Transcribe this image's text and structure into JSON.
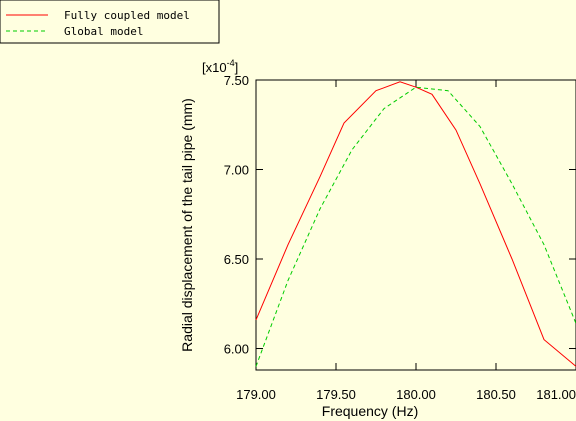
{
  "chart_data": {
    "type": "line",
    "xlabel": "Frequency (Hz)",
    "ylabel": "Radial displacement of the tail pipe (mm)",
    "y_multiplier": {
      "base": "[x10",
      "exponent": "-4",
      "close": "]"
    },
    "xlim": [
      179.0,
      181.0
    ],
    "ylim": [
      5.88,
      7.5
    ],
    "x_ticks": [
      179.0,
      179.5,
      180.0,
      180.5,
      181.0
    ],
    "x_tick_labels": [
      "179.00",
      "179.50",
      "180.00",
      "180.50",
      "181.00"
    ],
    "y_ticks": [
      6.0,
      6.5,
      7.0,
      7.5
    ],
    "y_tick_labels": [
      "6.00",
      "6.50",
      "7.00",
      "7.50"
    ],
    "legend_position": "top-left",
    "grid": false,
    "series": [
      {
        "name": "Fully coupled model",
        "color": "#ff0000",
        "dash": "solid",
        "x": [
          179.0,
          179.2,
          179.4,
          179.55,
          179.75,
          179.9,
          180.0,
          180.1,
          180.25,
          180.4,
          180.6,
          180.8,
          181.0
        ],
        "y": [
          6.16,
          6.58,
          6.96,
          7.26,
          7.44,
          7.49,
          7.46,
          7.42,
          7.22,
          6.92,
          6.5,
          6.05,
          5.9
        ]
      },
      {
        "name": "Global model",
        "color": "#00cc00",
        "dash": "dashed",
        "x": [
          179.0,
          179.2,
          179.4,
          179.6,
          179.8,
          180.0,
          180.2,
          180.4,
          180.6,
          180.8,
          181.0
        ],
        "y": [
          5.9,
          6.38,
          6.78,
          7.11,
          7.34,
          7.46,
          7.44,
          7.24,
          6.92,
          6.58,
          6.14
        ]
      }
    ]
  }
}
